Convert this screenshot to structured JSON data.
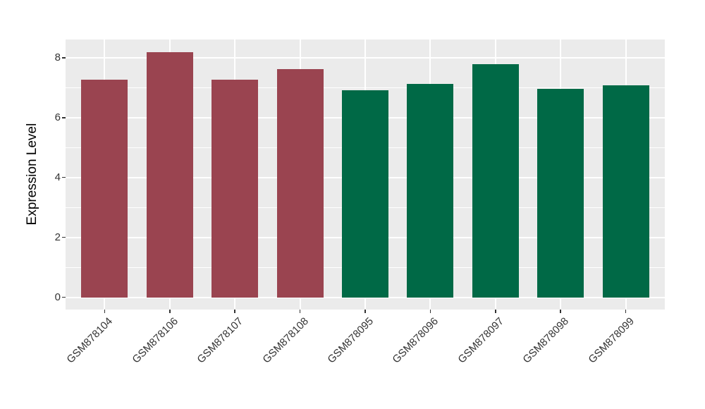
{
  "figure": {
    "background": "#FFFFFF"
  },
  "chart_data": {
    "type": "bar",
    "title": "",
    "xlabel": "",
    "ylabel": "Expression Level",
    "categories": [
      "GSM878104",
      "GSM878106",
      "GSM878107",
      "GSM878108",
      "GSM878095",
      "GSM878096",
      "GSM878097",
      "GSM878098",
      "GSM878099"
    ],
    "values": [
      7.27,
      8.19,
      7.27,
      7.62,
      6.92,
      7.12,
      7.79,
      6.96,
      7.07
    ],
    "bar_colors": [
      "#9A4450",
      "#9A4450",
      "#9A4450",
      "#9A4450",
      "#006946",
      "#006946",
      "#006946",
      "#006946",
      "#006946"
    ],
    "group_colors": {
      "maroon_group": "#9A4450",
      "green_group": "#006946"
    },
    "y_major_ticks": [
      0,
      2,
      4,
      6,
      8
    ],
    "y_minor_ticks": [
      1,
      3,
      5,
      7
    ],
    "ylim": [
      -0.41,
      8.61
    ],
    "xlim": [
      0.4,
      9.6
    ],
    "x_tick_angle_deg": 45,
    "grid": "on",
    "legend_position": "none",
    "panel_background": "#EBEBEB",
    "grid_color": "#FFFFFF",
    "axis_text_color": "#333333",
    "axis_title_color": "#000000",
    "tick_mark_color": "#333333"
  }
}
